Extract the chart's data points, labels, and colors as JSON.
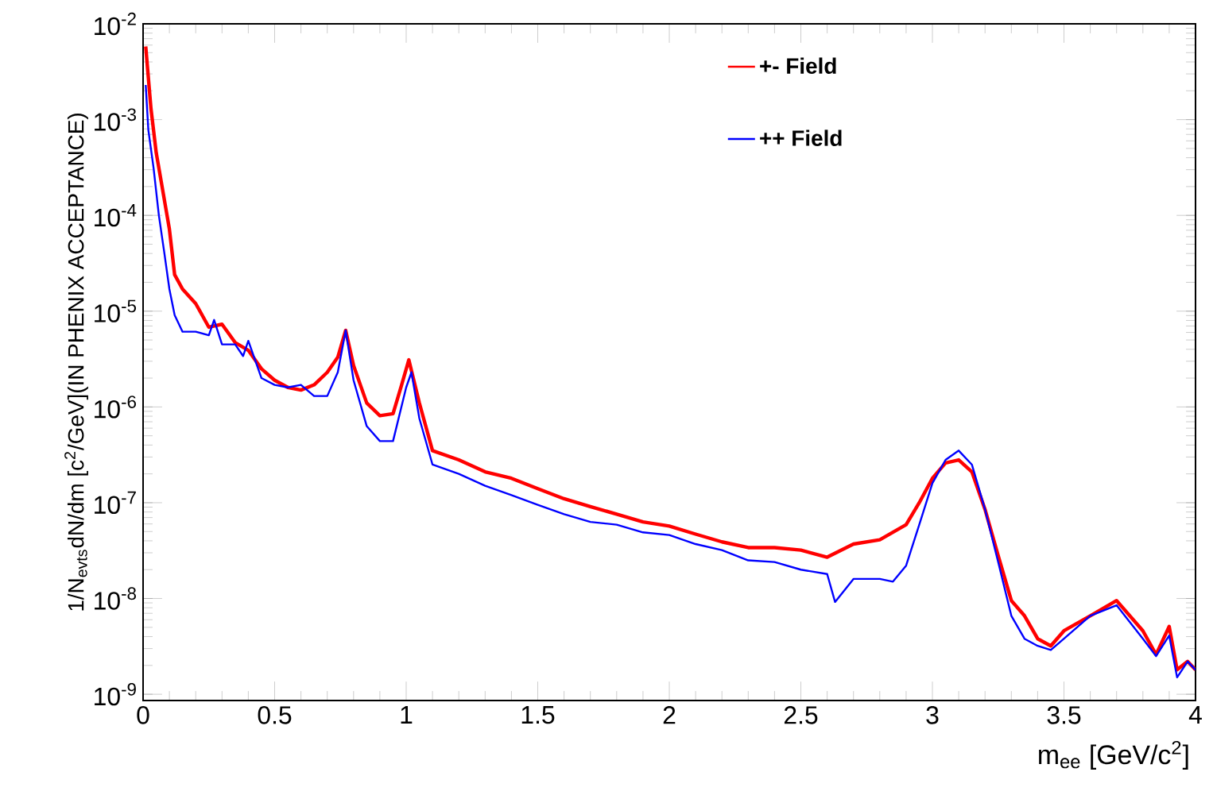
{
  "chart_data": {
    "type": "line",
    "xlabel": "m$_{ee}$ [GeV/c$^{2}$]",
    "ylabel": "1/N$_{evts}$dN/dm [c$^{2}$/GeV](IN PHENIX ACCEPTANCE)",
    "xlim": [
      0,
      4
    ],
    "ylim": [
      8.6e-10,
      0.01
    ],
    "xticks": [
      0,
      0.5,
      1,
      1.5,
      2,
      2.5,
      3,
      3.5,
      4
    ],
    "yticks": [
      {
        "value": 1e-09,
        "label": "10$^{-9}$"
      },
      {
        "value": 1e-08,
        "label": "10$^{-8}$"
      },
      {
        "value": 1e-07,
        "label": "10$^{-7}$"
      },
      {
        "value": 1e-06,
        "label": "10$^{-6}$"
      },
      {
        "value": 1e-05,
        "label": "10$^{-5}$"
      },
      {
        "value": 0.0001,
        "label": "10$^{-4}$"
      },
      {
        "value": 0.001,
        "label": "10$^{-3}$"
      },
      {
        "value": 0.01,
        "label": "10$^{-2}$"
      }
    ],
    "log": "y",
    "grid": false,
    "legend": "top right",
    "marker": "none",
    "line_style": "solid",
    "series": [
      {
        "name": "+- Field",
        "color": "#ff0000",
        "x": [
          0.01,
          0.03,
          0.05,
          0.08,
          0.1,
          0.12,
          0.15,
          0.2,
          0.25,
          0.3,
          0.35,
          0.4,
          0.45,
          0.5,
          0.55,
          0.6,
          0.65,
          0.7,
          0.74,
          0.77,
          0.8,
          0.85,
          0.9,
          0.95,
          0.98,
          1.01,
          1.05,
          1.1,
          1.2,
          1.3,
          1.4,
          1.5,
          1.6,
          1.7,
          1.8,
          1.9,
          2.0,
          2.1,
          2.2,
          2.3,
          2.4,
          2.5,
          2.6,
          2.7,
          2.8,
          2.9,
          2.95,
          3.0,
          3.05,
          3.1,
          3.15,
          3.2,
          3.25,
          3.3,
          3.35,
          3.4,
          3.45,
          3.5,
          3.6,
          3.7,
          3.8,
          3.85,
          3.9,
          3.93,
          3.97,
          4.0
        ],
        "values": [
          0.0058,
          0.0013,
          0.00045,
          0.00015,
          7.2e-05,
          2.4e-05,
          1.7e-05,
          1.2e-05,
          6.8e-06,
          7.3e-06,
          4.7e-06,
          3.9e-06,
          2.5e-06,
          1.9e-06,
          1.6e-06,
          1.5e-06,
          1.7e-06,
          2.3e-06,
          3.3e-06,
          6.3e-06,
          2.7e-06,
          1.1e-06,
          8.1e-07,
          8.5e-07,
          1.6e-06,
          3.1e-06,
          1.1e-06,
          3.5e-07,
          2.8e-07,
          2.1e-07,
          1.8e-07,
          1.4e-07,
          1.1e-07,
          9.1e-08,
          7.6e-08,
          6.3e-08,
          5.7e-08,
          4.7e-08,
          3.9e-08,
          3.4e-08,
          3.4e-08,
          3.2e-08,
          2.7e-08,
          3.7e-08,
          4.1e-08,
          5.9e-08,
          1e-07,
          1.8e-07,
          2.6e-07,
          2.8e-07,
          2.1e-07,
          8.5e-08,
          2.8e-08,
          9.5e-09,
          6.6e-09,
          3.8e-09,
          3.2e-09,
          4.6e-09,
          6.6e-09,
          9.5e-09,
          4.6e-09,
          2.6e-09,
          5.1e-09,
          1.8e-09,
          2.2e-09,
          1.8e-09
        ]
      },
      {
        "name": "++ Field",
        "color": "#0000ff",
        "x": [
          0.01,
          0.02,
          0.04,
          0.06,
          0.08,
          0.1,
          0.12,
          0.15,
          0.2,
          0.25,
          0.27,
          0.3,
          0.35,
          0.38,
          0.4,
          0.45,
          0.5,
          0.55,
          0.6,
          0.65,
          0.7,
          0.74,
          0.77,
          0.8,
          0.85,
          0.9,
          0.95,
          1.0,
          1.02,
          1.05,
          1.1,
          1.2,
          1.3,
          1.4,
          1.5,
          1.6,
          1.7,
          1.8,
          1.9,
          2.0,
          2.1,
          2.2,
          2.3,
          2.4,
          2.5,
          2.6,
          2.63,
          2.7,
          2.8,
          2.85,
          2.9,
          2.95,
          3.0,
          3.05,
          3.1,
          3.15,
          3.2,
          3.25,
          3.3,
          3.35,
          3.4,
          3.45,
          3.5,
          3.6,
          3.7,
          3.8,
          3.85,
          3.9,
          3.93,
          3.97,
          4.0
        ],
        "values": [
          0.0023,
          0.00078,
          0.00031,
          0.0001,
          4.2e-05,
          1.7e-05,
          9.1e-06,
          6.1e-06,
          6.1e-06,
          5.6e-06,
          8.1e-06,
          4.5e-06,
          4.5e-06,
          3.4e-06,
          4.9e-06,
          2e-06,
          1.7e-06,
          1.6e-06,
          1.7e-06,
          1.3e-06,
          1.3e-06,
          2.3e-06,
          6.3e-06,
          1.9e-06,
          6.3e-07,
          4.4e-07,
          4.4e-07,
          1.6e-06,
          2.3e-06,
          7.6e-07,
          2.5e-07,
          2e-07,
          1.5e-07,
          1.2e-07,
          9.5e-08,
          7.6e-08,
          6.3e-08,
          5.9e-08,
          4.9e-08,
          4.6e-08,
          3.7e-08,
          3.2e-08,
          2.5e-08,
          2.4e-08,
          2e-08,
          1.8e-08,
          9.2e-09,
          1.6e-08,
          1.6e-08,
          1.5e-08,
          2.2e-08,
          5.9e-08,
          1.6e-07,
          2.8e-07,
          3.5e-07,
          2.5e-07,
          8.5e-08,
          2.4e-08,
          6.6e-09,
          3.8e-09,
          3.2e-09,
          2.9e-09,
          3.8e-09,
          6.6e-09,
          8.5e-09,
          3.8e-09,
          2.5e-09,
          4.1e-09,
          1.5e-09,
          2.2e-09,
          1.8e-09
        ]
      }
    ]
  }
}
